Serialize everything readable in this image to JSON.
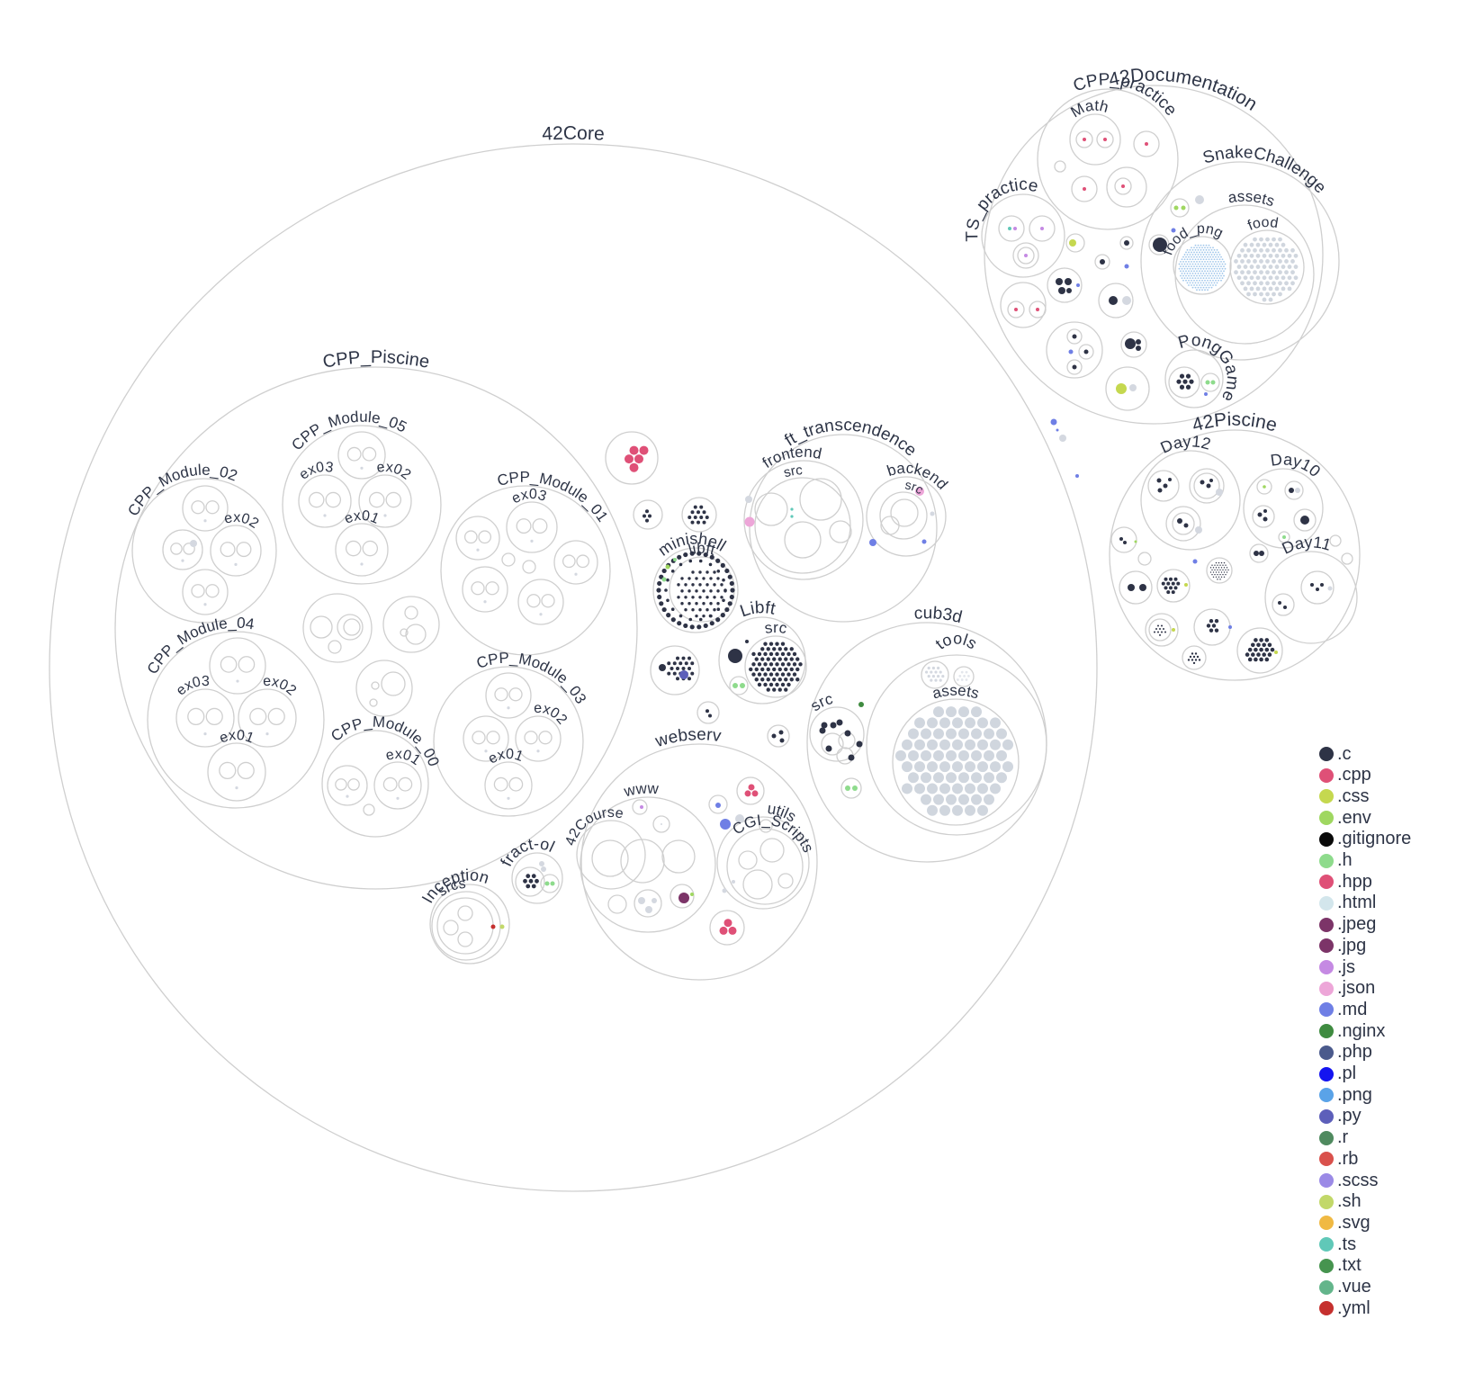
{
  "diagram": {
    "directories": [
      "42Core",
      "CPP_Piscine",
      "CPP_Module_05",
      "ex03",
      "ex02",
      "ex01",
      "CPP_Module_02",
      "CPP_Module_01",
      "CPP_Module_04",
      "CPP_Module_03",
      "CPP_Module_00",
      "ft_transcendence",
      "frontend",
      "src",
      "backend",
      "minishell",
      "libft",
      "Libft",
      "cub3d",
      "tools",
      "assets",
      "webserv",
      "www",
      "42Course",
      "utils",
      "CGI_Scripts",
      "fract-ol",
      "Inception",
      "srcs",
      "42Documentation",
      "CPP_practice",
      "Math",
      "TS_practice",
      "SnakeChallenge",
      "food_png",
      "food",
      "PongGame",
      "42Piscine",
      "Day12",
      "Day10",
      "Day11"
    ]
  },
  "legend": [
    {
      "label": ".c",
      "color": "#2e3346"
    },
    {
      "label": ".cpp",
      "color": "#df5077"
    },
    {
      "label": ".css",
      "color": "#c5d84f"
    },
    {
      "label": ".env",
      "color": "#9fd760"
    },
    {
      "label": ".gitignore",
      "color": "#0a0a0a"
    },
    {
      "label": ".h",
      "color": "#8edb8c"
    },
    {
      "label": ".hpp",
      "color": "#df5077"
    },
    {
      "label": ".html",
      "color": "#d3e6ec"
    },
    {
      "label": ".jpeg",
      "color": "#7c3468"
    },
    {
      "label": ".jpg",
      "color": "#7c3468"
    },
    {
      "label": ".js",
      "color": "#c58ae3"
    },
    {
      "label": ".json",
      "color": "#eda6d8"
    },
    {
      "label": ".md",
      "color": "#6f7fe5"
    },
    {
      "label": ".nginx",
      "color": "#3f8b40"
    },
    {
      "label": ".php",
      "color": "#4b5a8c"
    },
    {
      "label": ".pl",
      "color": "#1414f0"
    },
    {
      "label": ".png",
      "color": "#5aa3e8"
    },
    {
      "label": ".py",
      "color": "#5d5fba"
    },
    {
      "label": ".r",
      "color": "#4f8a5f"
    },
    {
      "label": ".rb",
      "color": "#d9514c"
    },
    {
      "label": ".scss",
      "color": "#9b8ae6"
    },
    {
      "label": ".sh",
      "color": "#c2d869"
    },
    {
      "label": ".svg",
      "color": "#f0b943"
    },
    {
      "label": ".ts",
      "color": "#60c8b8"
    },
    {
      "label": ".txt",
      "color": "#46944f"
    },
    {
      "label": ".vue",
      "color": "#63b58b"
    },
    {
      "label": ".yml",
      "color": "#c5302e"
    }
  ]
}
